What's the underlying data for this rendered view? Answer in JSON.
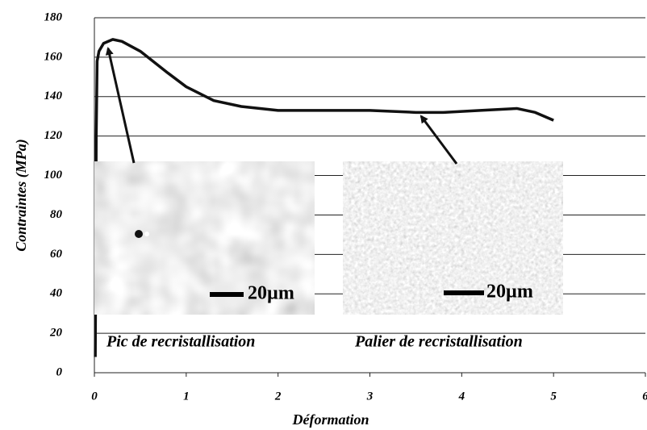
{
  "chart_data": {
    "type": "line",
    "x_label": "Déformation",
    "y_label": "Contraintes (MPa)",
    "x": [
      0.01,
      0.015,
      0.02,
      0.03,
      0.05,
      0.1,
      0.2,
      0.3,
      0.5,
      0.8,
      1.0,
      1.3,
      1.6,
      2.0,
      2.5,
      3.0,
      3.5,
      3.8,
      4.2,
      4.6,
      4.8,
      5.0
    ],
    "values": [
      8,
      60,
      120,
      158,
      163,
      167,
      169,
      168,
      163,
      152,
      145,
      138,
      135,
      133,
      133,
      133,
      132,
      132,
      133,
      134,
      132,
      128
    ],
    "color": "#111111",
    "xlim": [
      0,
      6
    ],
    "xticks": [
      0,
      1,
      2,
      3,
      4,
      5,
      6
    ],
    "ylim": [
      0,
      180
    ],
    "yticks": [
      0,
      20,
      40,
      60,
      80,
      100,
      120,
      140,
      160,
      180
    ],
    "grid": true,
    "annotations": [
      "Pic de recristallisation",
      "Palier de recristallisation"
    ],
    "scale_bars": [
      "20µm",
      "20µm"
    ]
  }
}
